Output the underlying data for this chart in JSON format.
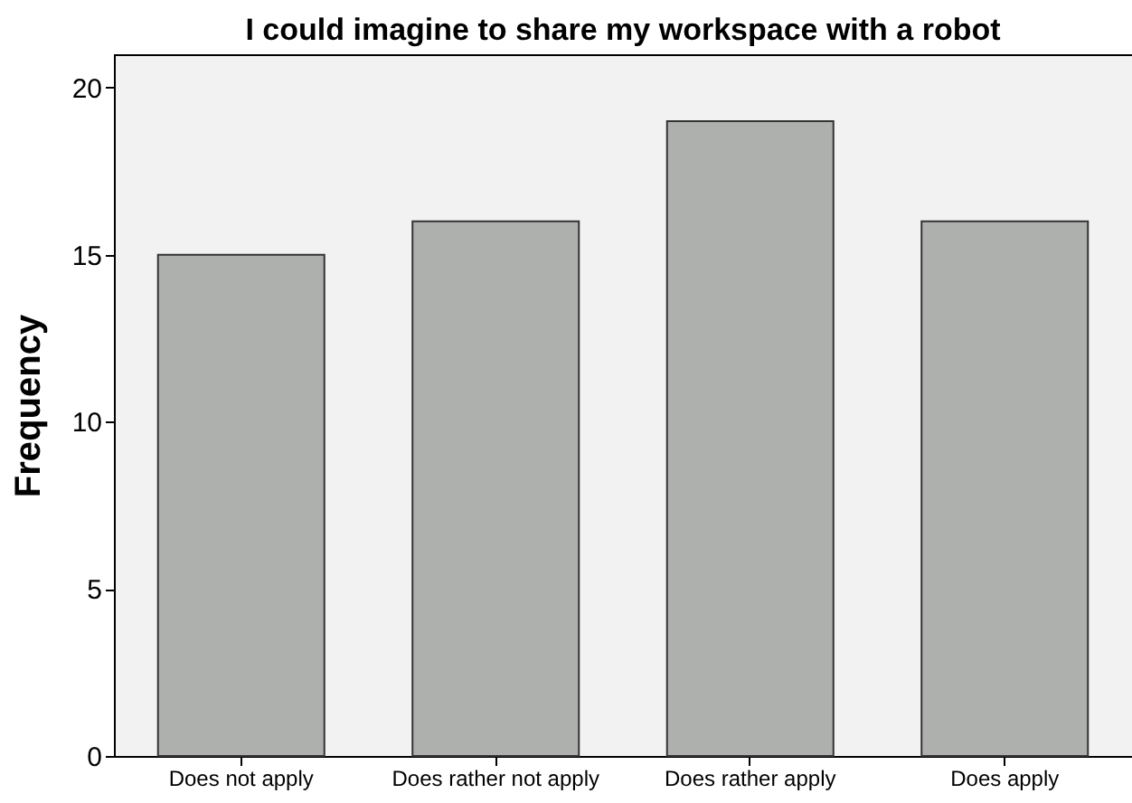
{
  "chart_data": {
    "type": "bar",
    "title": "I could imagine to share my workspace with a robot",
    "ylabel": "Frequency",
    "categories": [
      "Does not apply",
      "Does rather not apply",
      "Does rather apply",
      "Does apply"
    ],
    "values": [
      15,
      16,
      19,
      16
    ],
    "color": "#aeb0ae",
    "ylim": [
      0,
      21
    ],
    "yticks": [
      0,
      5,
      10,
      15,
      20
    ],
    "grid": false
  }
}
